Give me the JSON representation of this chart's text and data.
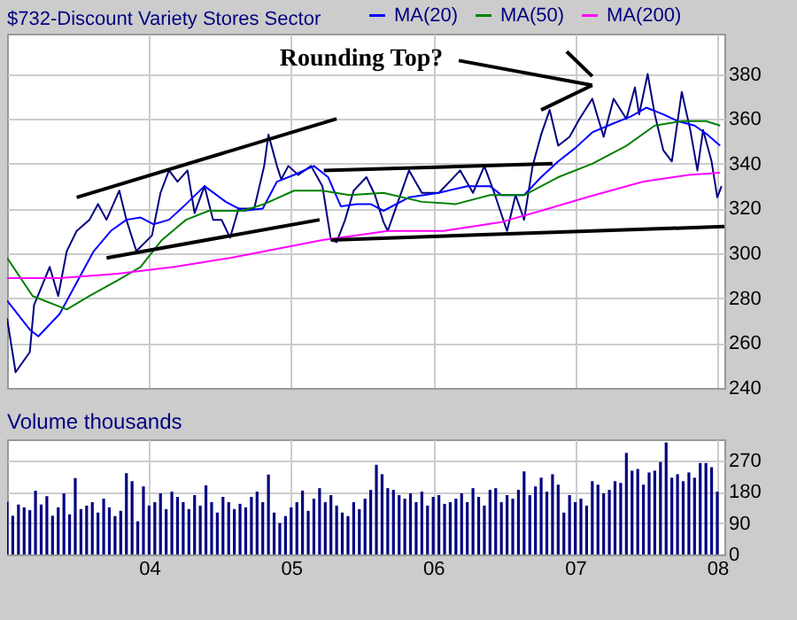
{
  "chart_data": [
    {
      "type": "line",
      "title": "$732-Discount Variety Stores Sector",
      "legend": "top right",
      "grid": true,
      "tick_labels": "y",
      "xlim": [
        2003,
        2008.05
      ],
      "xticks": [
        2004,
        2005,
        2006,
        2007,
        2008
      ],
      "ylim": [
        240,
        398
      ],
      "yticks": [
        240,
        260,
        280,
        300,
        320,
        340,
        360,
        380
      ],
      "annotations": [
        "Rounding Top?"
      ],
      "series": [
        {
          "type": "line",
          "color": "#000080",
          "x": [
            2003.0,
            2003.06,
            2003.16,
            2003.19,
            2003.3,
            2003.36,
            2003.42,
            2003.49,
            2003.58,
            2003.64,
            2003.7,
            2003.79,
            2003.84,
            2003.91,
            2004.02,
            2004.08,
            2004.14,
            2004.2,
            2004.27,
            2004.32,
            2004.39,
            2004.45,
            2004.51,
            2004.57,
            2004.63,
            2004.74,
            2004.81,
            2004.84,
            2004.9,
            2004.93,
            2004.98,
            2005.05,
            2005.14,
            2005.22,
            2005.28,
            2005.32,
            2005.38,
            2005.44,
            2005.53,
            2005.59,
            2005.65,
            2005.68,
            2005.83,
            2005.92,
            2006.04,
            2006.19,
            2006.28,
            2006.36,
            2006.43,
            2006.52,
            2006.58,
            2006.64,
            2006.7,
            2006.76,
            2006.82,
            2006.88,
            2006.96,
            2007.03,
            2007.12,
            2007.2,
            2007.27,
            2007.36,
            2007.42,
            2007.45,
            2007.51,
            2007.56,
            2007.62,
            2007.68,
            2007.75,
            2007.81,
            2007.86,
            2007.9,
            2007.96,
            2008.0,
            2008.03
          ],
          "values": [
            271,
            247,
            256,
            277,
            294,
            281,
            301,
            310,
            315,
            322,
            315,
            328,
            315,
            301,
            308,
            327,
            337,
            332,
            337,
            318,
            330,
            315,
            315,
            307,
            320,
            320,
            339,
            353,
            339,
            333,
            339,
            335,
            339,
            330,
            306,
            305,
            315,
            328,
            334,
            326,
            314,
            310,
            337,
            327,
            327,
            337,
            327,
            339,
            327,
            310,
            326,
            315,
            339,
            353,
            364,
            348,
            352,
            360,
            369,
            352,
            369,
            360,
            374,
            362,
            380,
            362,
            346,
            341,
            372,
            355,
            337,
            355,
            341,
            325,
            330
          ]
        },
        {
          "type": "line",
          "name": "MA(20)",
          "color": "#0000ff",
          "x": [
            2003.0,
            2003.16,
            2003.22,
            2003.37,
            2003.49,
            2003.61,
            2003.73,
            2003.84,
            2003.94,
            2004.03,
            2004.14,
            2004.26,
            2004.39,
            2004.54,
            2004.66,
            2004.8,
            2004.9,
            2005.02,
            2005.16,
            2005.26,
            2005.35,
            2005.46,
            2005.56,
            2005.65,
            2005.83,
            2006.04,
            2006.24,
            2006.4,
            2006.48,
            2006.64,
            2006.76,
            2006.88,
            2007.0,
            2007.12,
            2007.27,
            2007.39,
            2007.5,
            2007.62,
            2007.72,
            2007.84,
            2007.93,
            2008.02
          ],
          "values": [
            279,
            266,
            263,
            273,
            287,
            301,
            310,
            315,
            316,
            313,
            315,
            322,
            330,
            323,
            319,
            320,
            332,
            335,
            339,
            334,
            321,
            322,
            322,
            319,
            325,
            327,
            330,
            330,
            326,
            326,
            334,
            341,
            347,
            354,
            358,
            361,
            365,
            362,
            359,
            357,
            353,
            348
          ]
        },
        {
          "type": "line",
          "name": "MA(50)",
          "color": "#008000",
          "x": [
            2003.0,
            2003.18,
            2003.42,
            2003.58,
            2003.78,
            2003.94,
            2004.09,
            2004.26,
            2004.42,
            2004.66,
            2004.81,
            2005.02,
            2005.22,
            2005.41,
            2005.65,
            2005.92,
            2006.16,
            2006.4,
            2006.64,
            2006.88,
            2007.12,
            2007.36,
            2007.56,
            2007.75,
            2007.92,
            2008.02
          ],
          "values": [
            298,
            281,
            275,
            281,
            288,
            294,
            306,
            315,
            319,
            319,
            322,
            328,
            328,
            326,
            327,
            323,
            322,
            326,
            326,
            334,
            340,
            348,
            357,
            359,
            359,
            357
          ]
        },
        {
          "type": "line",
          "name": "MA(200)",
          "color": "#ff00ff",
          "x": [
            2003.0,
            2003.37,
            2003.78,
            2004.18,
            2004.57,
            2004.9,
            2005.22,
            2005.46,
            2005.68,
            2006.07,
            2006.48,
            2006.76,
            2007.08,
            2007.48,
            2007.8,
            2008.02
          ],
          "values": [
            289,
            289,
            291,
            294,
            298,
            302,
            306,
            308,
            310,
            310,
            314,
            319,
            325,
            332,
            335,
            336
          ]
        },
        {
          "type": "line",
          "color": "#000000",
          "x": [
            2003.49,
            2005.32
          ],
          "values": [
            325,
            360
          ]
        },
        {
          "type": "line",
          "color": "#000000",
          "x": [
            2003.7,
            2005.2
          ],
          "values": [
            298,
            315
          ]
        },
        {
          "type": "line",
          "color": "#000000",
          "x": [
            2005.23,
            2006.84
          ],
          "values": [
            337,
            340
          ]
        },
        {
          "type": "line",
          "color": "#000000",
          "x": [
            2005.28,
            2008.05
          ],
          "values": [
            306,
            312
          ]
        },
        {
          "type": "line",
          "color": "#000000",
          "x": [
            2006.76,
            2007.12
          ],
          "values": [
            364,
            375
          ]
        },
        {
          "type": "line",
          "color": "#000000",
          "x": [
            2006.18,
            2007.12
          ],
          "values": [
            386,
            375
          ]
        },
        {
          "type": "line",
          "color": "#000000",
          "x": [
            2006.94,
            2007.12
          ],
          "values": [
            390,
            379
          ]
        }
      ]
    },
    {
      "type": "bar",
      "title": "Volume thousands",
      "grid": true,
      "color": "#000080",
      "xlim": [
        2003,
        2008.05
      ],
      "xticks": [
        {
          "value": 2004,
          "label": "04"
        },
        {
          "value": 2005,
          "label": "05"
        },
        {
          "value": 2006,
          "label": "06"
        },
        {
          "value": 2007,
          "label": "07"
        },
        {
          "value": 2008,
          "label": "08"
        }
      ],
      "ylim": [
        0,
        330
      ],
      "yticks": [
        0,
        90,
        180,
        270
      ],
      "x": [
        2003.0,
        2003.04,
        2003.08,
        2003.12,
        2003.16,
        2003.2,
        2003.24,
        2003.28,
        2003.32,
        2003.36,
        2003.4,
        2003.44,
        2003.48,
        2003.52,
        2003.56,
        2003.6,
        2003.64,
        2003.68,
        2003.72,
        2003.76,
        2003.8,
        2003.84,
        2003.88,
        2003.92,
        2003.96,
        2004.0,
        2004.04,
        2004.08,
        2004.12,
        2004.16,
        2004.2,
        2004.24,
        2004.28,
        2004.32,
        2004.36,
        2004.4,
        2004.44,
        2004.48,
        2004.52,
        2004.56,
        2004.6,
        2004.64,
        2004.68,
        2004.72,
        2004.76,
        2004.8,
        2004.84,
        2004.88,
        2004.92,
        2004.96,
        2005.0,
        2005.04,
        2005.08,
        2005.12,
        2005.16,
        2005.2,
        2005.24,
        2005.28,
        2005.32,
        2005.36,
        2005.4,
        2005.44,
        2005.48,
        2005.52,
        2005.56,
        2005.6,
        2005.64,
        2005.68,
        2005.72,
        2005.76,
        2005.8,
        2005.84,
        2005.88,
        2005.92,
        2005.96,
        2006.0,
        2006.04,
        2006.08,
        2006.12,
        2006.16,
        2006.2,
        2006.24,
        2006.28,
        2006.32,
        2006.36,
        2006.4,
        2006.44,
        2006.48,
        2006.52,
        2006.56,
        2006.6,
        2006.64,
        2006.68,
        2006.72,
        2006.76,
        2006.8,
        2006.84,
        2006.88,
        2006.92,
        2006.96,
        2007.0,
        2007.04,
        2007.08,
        2007.12,
        2007.16,
        2007.2,
        2007.24,
        2007.28,
        2007.32,
        2007.36,
        2007.4,
        2007.44,
        2007.48,
        2007.52,
        2007.56,
        2007.6,
        2007.64,
        2007.68,
        2007.72,
        2007.76,
        2007.8,
        2007.84,
        2007.88,
        2007.92,
        2007.96,
        2008.0
      ],
      "values": [
        151,
        111,
        143,
        135,
        127,
        183,
        143,
        167,
        111,
        135,
        175,
        115,
        219,
        130,
        140,
        150,
        120,
        160,
        135,
        110,
        125,
        233,
        210,
        95,
        195,
        140,
        150,
        175,
        130,
        180,
        165,
        150,
        130,
        170,
        140,
        198,
        150,
        120,
        165,
        150,
        130,
        145,
        135,
        165,
        180,
        150,
        229,
        120,
        90,
        110,
        135,
        150,
        183,
        125,
        160,
        190,
        150,
        170,
        140,
        120,
        110,
        150,
        130,
        160,
        185,
        257,
        230,
        190,
        185,
        170,
        160,
        175,
        150,
        180,
        140,
        165,
        170,
        145,
        150,
        160,
        175,
        150,
        190,
        165,
        140,
        185,
        190,
        150,
        170,
        160,
        185,
        238,
        170,
        195,
        220,
        180,
        230,
        200,
        120,
        170,
        150,
        160,
        140,
        210,
        200,
        175,
        185,
        210,
        205,
        291,
        240,
        245,
        200,
        235,
        240,
        265,
        321,
        220,
        230,
        210,
        235,
        220,
        262,
        262,
        250,
        180
      ]
    }
  ]
}
